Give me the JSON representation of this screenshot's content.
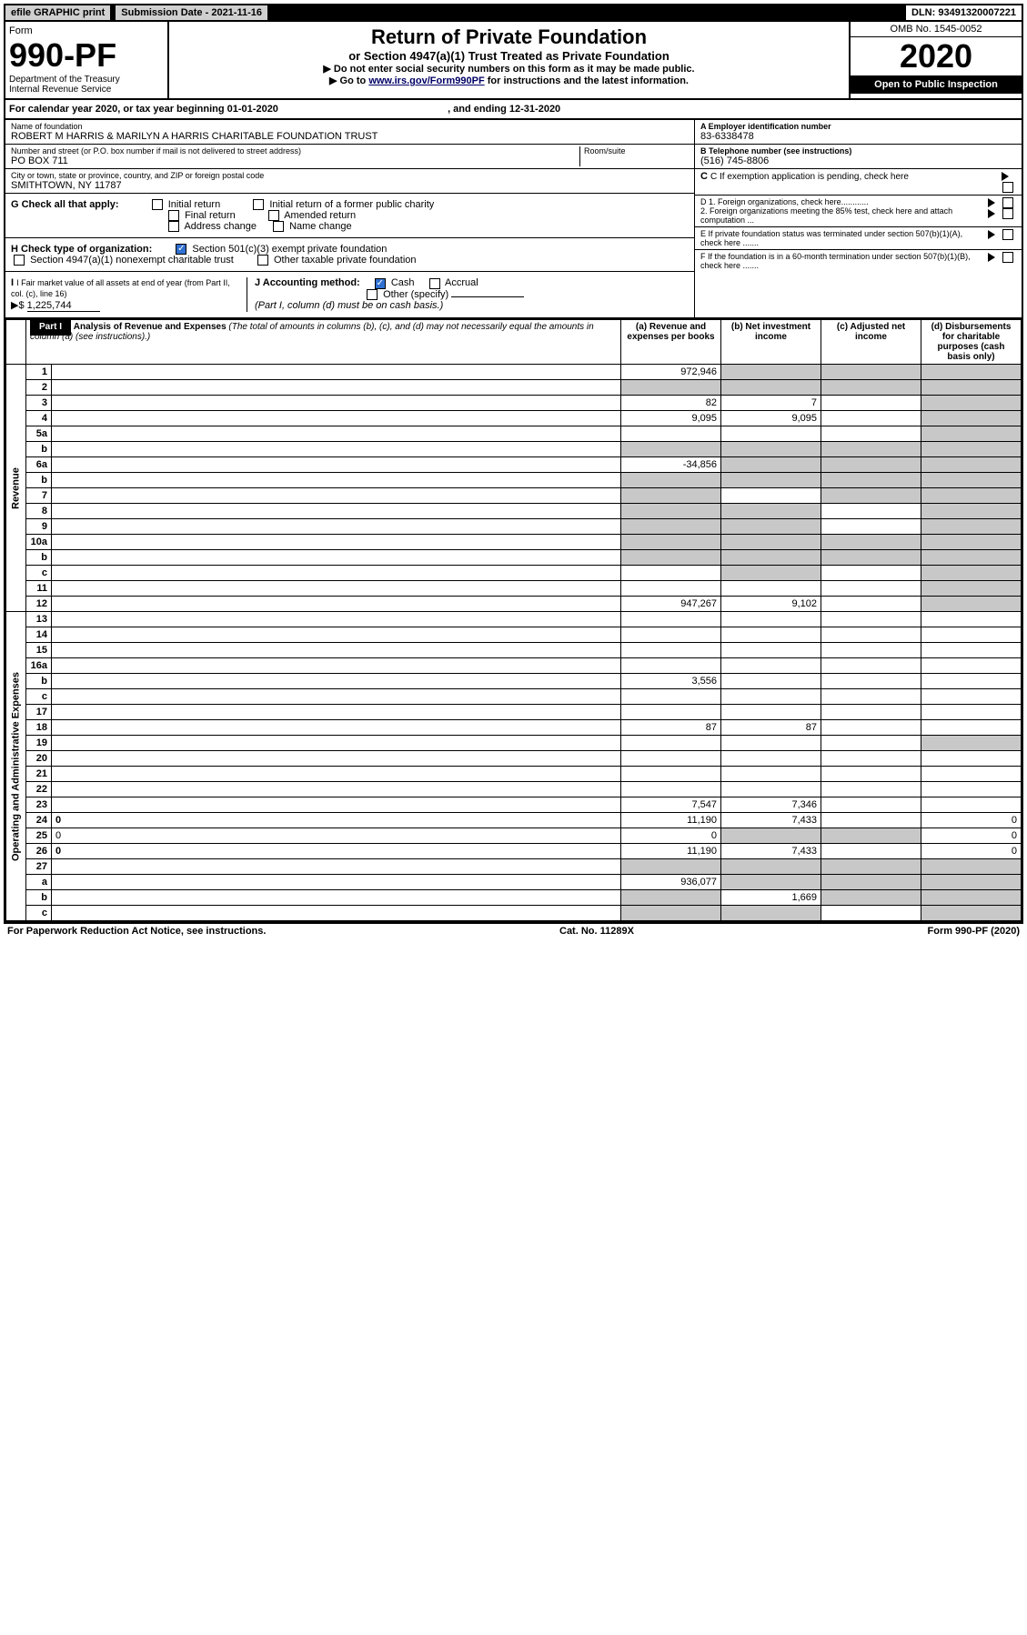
{
  "topbar": {
    "efile": "efile GRAPHIC print",
    "subdate_label": "Submission Date - ",
    "subdate": "2021-11-16",
    "dln_label": "DLN: ",
    "dln": "93491320007221"
  },
  "header": {
    "form_word": "Form",
    "form_num": "990-PF",
    "dept": "Department of the Treasury\nInternal Revenue Service",
    "title": "Return of Private Foundation",
    "subtitle": "or Section 4947(a)(1) Trust Treated as Private Foundation",
    "note1": "▶ Do not enter social security numbers on this form as it may be made public.",
    "note2_pre": "▶ Go to ",
    "note2_link": "www.irs.gov/Form990PF",
    "note2_post": " for instructions and the latest information.",
    "omb": "OMB No. 1545-0052",
    "year": "2020",
    "open": "Open to Public Inspection"
  },
  "calyear": {
    "pre": "For calendar year 2020, or tax year beginning ",
    "begin": "01-01-2020",
    "mid": " , and ending ",
    "end": "12-31-2020"
  },
  "ident": {
    "name_label": "Name of foundation",
    "name": "ROBERT M HARRIS & MARILYN A HARRIS CHARITABLE FOUNDATION TRUST",
    "addr_label": "Number and street (or P.O. box number if mail is not delivered to street address)",
    "addr": "PO BOX 711",
    "room_label": "Room/suite",
    "city_label": "City or town, state or province, country, and ZIP or foreign postal code",
    "city": "SMITHTOWN, NY  11787",
    "ein_label": "A Employer identification number",
    "ein": "83-6338478",
    "tel_label": "B Telephone number (see instructions)",
    "tel": "(516) 745-8806",
    "c_label": "C If exemption application is pending, check here"
  },
  "checks": {
    "g_label": "G Check all that apply:",
    "g_opts": [
      "Initial return",
      "Initial return of a former public charity",
      "Final return",
      "Amended return",
      "Address change",
      "Name change"
    ],
    "h_label": "H Check type of organization:",
    "h1": "Section 501(c)(3) exempt private foundation",
    "h2": "Section 4947(a)(1) nonexempt charitable trust",
    "h3": "Other taxable private foundation",
    "i_label": "I Fair market value of all assets at end of year (from Part II, col. (c), line 16)",
    "i_val": "1,225,744",
    "j_label": "J Accounting method:",
    "j_cash": "Cash",
    "j_accrual": "Accrual",
    "j_other": "Other (specify)",
    "j_note": "(Part I, column (d) must be on cash basis.)",
    "d1": "D 1. Foreign organizations, check here............",
    "d2": "2. Foreign organizations meeting the 85% test, check here and attach computation ...",
    "e": "E  If private foundation status was terminated under section 507(b)(1)(A), check here .......",
    "f": "F  If the foundation is in a 60-month termination under section 507(b)(1)(B), check here .......",
    "i_prefix": "▶$  "
  },
  "part1": {
    "tab": "Part I",
    "title": "Analysis of Revenue and Expenses",
    "title_note": " (The total of amounts in columns (b), (c), and (d) may not necessarily equal the amounts in column (a) (see instructions).)",
    "col_a": "(a) Revenue and expenses per books",
    "col_b": "(b) Net investment income",
    "col_c": "(c) Adjusted net income",
    "col_d": "(d) Disbursements for charitable purposes (cash basis only)"
  },
  "rows": [
    {
      "n": "1",
      "d": "",
      "a": "972,946",
      "b": "",
      "c": "",
      "sh": [
        "b",
        "c",
        "d"
      ]
    },
    {
      "n": "2",
      "d": "",
      "a": "",
      "b": "",
      "c": "",
      "sh": [
        "a",
        "b",
        "c",
        "d"
      ]
    },
    {
      "n": "3",
      "d": "",
      "a": "82",
      "b": "7",
      "c": "",
      "sh": [
        "d"
      ]
    },
    {
      "n": "4",
      "d": "",
      "a": "9,095",
      "b": "9,095",
      "c": "",
      "sh": [
        "d"
      ]
    },
    {
      "n": "5a",
      "d": "",
      "a": "",
      "b": "",
      "c": "",
      "sh": [
        "d"
      ]
    },
    {
      "n": "b",
      "d": "",
      "a": "",
      "b": "",
      "c": "",
      "sh": [
        "a",
        "b",
        "c",
        "d"
      ]
    },
    {
      "n": "6a",
      "d": "",
      "a": "-34,856",
      "b": "",
      "c": "",
      "sh": [
        "b",
        "c",
        "d"
      ]
    },
    {
      "n": "b",
      "d": "",
      "a": "",
      "b": "",
      "c": "",
      "sh": [
        "a",
        "b",
        "c",
        "d"
      ]
    },
    {
      "n": "7",
      "d": "",
      "a": "",
      "b": "",
      "c": "",
      "sh": [
        "a",
        "c",
        "d"
      ]
    },
    {
      "n": "8",
      "d": "",
      "a": "",
      "b": "",
      "c": "",
      "sh": [
        "a",
        "b",
        "d"
      ]
    },
    {
      "n": "9",
      "d": "",
      "a": "",
      "b": "",
      "c": "",
      "sh": [
        "a",
        "b",
        "d"
      ]
    },
    {
      "n": "10a",
      "d": "",
      "a": "",
      "b": "",
      "c": "",
      "sh": [
        "a",
        "b",
        "c",
        "d"
      ]
    },
    {
      "n": "b",
      "d": "",
      "a": "",
      "b": "",
      "c": "",
      "sh": [
        "a",
        "b",
        "c",
        "d"
      ]
    },
    {
      "n": "c",
      "d": "",
      "a": "",
      "b": "",
      "c": "",
      "sh": [
        "b",
        "d"
      ]
    },
    {
      "n": "11",
      "d": "",
      "a": "",
      "b": "",
      "c": "",
      "sh": [
        "d"
      ]
    },
    {
      "n": "12",
      "d": "",
      "a": "947,267",
      "b": "9,102",
      "c": "",
      "sh": [
        "d"
      ],
      "bold": true
    },
    {
      "n": "13",
      "d": "",
      "a": "",
      "b": "",
      "c": ""
    },
    {
      "n": "14",
      "d": "",
      "a": "",
      "b": "",
      "c": ""
    },
    {
      "n": "15",
      "d": "",
      "a": "",
      "b": "",
      "c": ""
    },
    {
      "n": "16a",
      "d": "",
      "a": "",
      "b": "",
      "c": ""
    },
    {
      "n": "b",
      "d": "",
      "a": "3,556",
      "b": "",
      "c": ""
    },
    {
      "n": "c",
      "d": "",
      "a": "",
      "b": "",
      "c": ""
    },
    {
      "n": "17",
      "d": "",
      "a": "",
      "b": "",
      "c": ""
    },
    {
      "n": "18",
      "d": "",
      "a": "87",
      "b": "87",
      "c": ""
    },
    {
      "n": "19",
      "d": "",
      "a": "",
      "b": "",
      "c": "",
      "sh": [
        "d"
      ]
    },
    {
      "n": "20",
      "d": "",
      "a": "",
      "b": "",
      "c": ""
    },
    {
      "n": "21",
      "d": "",
      "a": "",
      "b": "",
      "c": ""
    },
    {
      "n": "22",
      "d": "",
      "a": "",
      "b": "",
      "c": ""
    },
    {
      "n": "23",
      "d": "",
      "a": "7,547",
      "b": "7,346",
      "c": ""
    },
    {
      "n": "24",
      "d": "0",
      "a": "11,190",
      "b": "7,433",
      "c": "",
      "bold": true
    },
    {
      "n": "25",
      "d": "0",
      "a": "0",
      "b": "",
      "c": "",
      "sh": [
        "b",
        "c"
      ]
    },
    {
      "n": "26",
      "d": "0",
      "a": "11,190",
      "b": "7,433",
      "c": "",
      "bold": true
    },
    {
      "n": "27",
      "d": "",
      "a": "",
      "b": "",
      "c": "",
      "sh": [
        "a",
        "b",
        "c",
        "d"
      ]
    },
    {
      "n": "a",
      "d": "",
      "a": "936,077",
      "b": "",
      "c": "",
      "sh": [
        "b",
        "c",
        "d"
      ],
      "bold": true
    },
    {
      "n": "b",
      "d": "",
      "a": "",
      "b": "1,669",
      "c": "",
      "sh": [
        "a",
        "c",
        "d"
      ],
      "bold": true
    },
    {
      "n": "c",
      "d": "",
      "a": "",
      "b": "",
      "c": "",
      "sh": [
        "a",
        "b",
        "d"
      ],
      "bold": true
    }
  ],
  "sidelabels": {
    "revenue": "Revenue",
    "expenses": "Operating and Administrative Expenses"
  },
  "footer": {
    "left": "For Paperwork Reduction Act Notice, see instructions.",
    "mid": "Cat. No. 11289X",
    "right": "Form 990-PF (2020)"
  }
}
